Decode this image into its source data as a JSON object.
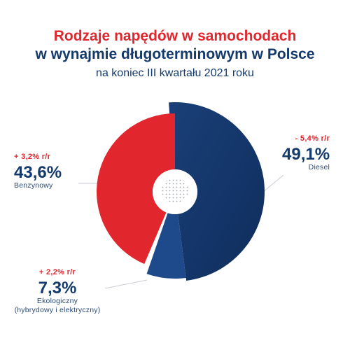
{
  "title": {
    "line1": "Rodzaje napędów w samochodach",
    "line2": "w wynajmie długoterminowym w Polsce",
    "subtitle": "na koniec III kwartału 2021 roku"
  },
  "colors": {
    "benzynowy": "#e1262d",
    "diesel": "#14366a",
    "ekologiczny": "#1e4a8c",
    "connector": "#c8cdd5"
  },
  "chart_data": {
    "type": "pie",
    "title": "Rodzaje napędów w samochodach w wynajmie długoterminowym w Polsce",
    "subtitle": "na koniec III kwartału 2021 roku",
    "slices": [
      {
        "name": "Diesel",
        "value": 49.1,
        "value_label": "49,1%",
        "change": "- 5,4% r/r"
      },
      {
        "name": "Ekologiczny",
        "name_extra": "(hybrydowy i elektryczny)",
        "value": 7.3,
        "value_label": "7,3%",
        "change": "+ 2,2% r/r"
      },
      {
        "name": "Benzynowy",
        "value": 43.6,
        "value_label": "43,6%",
        "change": "+ 3,2% r/r"
      }
    ]
  }
}
